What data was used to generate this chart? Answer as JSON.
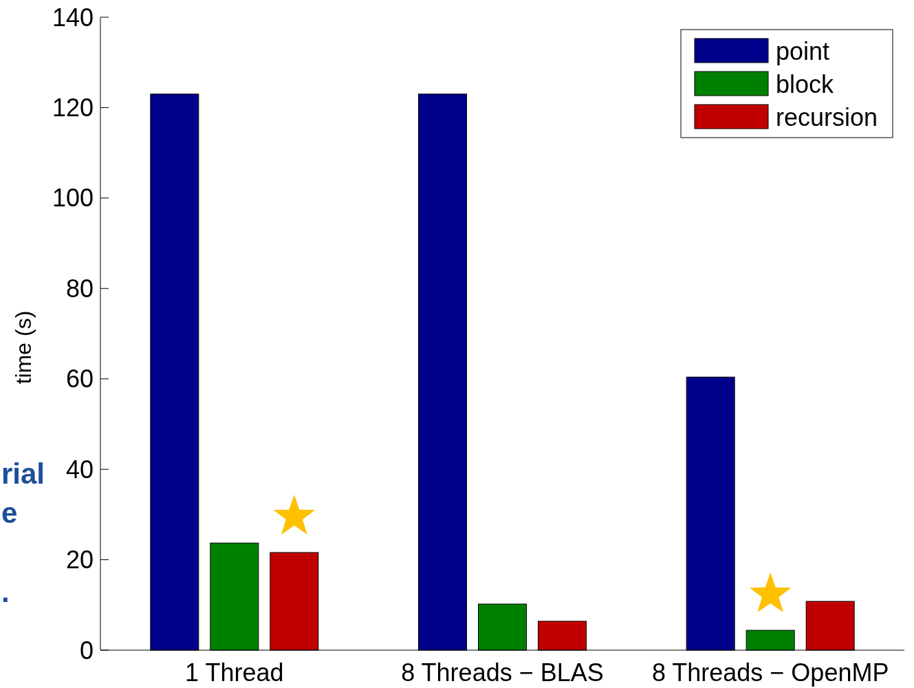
{
  "chart_data": {
    "type": "bar",
    "ylabel": "time (s)",
    "categories": [
      "1 Thread",
      "8 Threads − BLAS",
      "8 Threads − OpenMP"
    ],
    "series": [
      {
        "name": "point",
        "color": "#00008b",
        "values": [
          123,
          123,
          60.4
        ]
      },
      {
        "name": "block",
        "color": "#008000",
        "values": [
          23.7,
          10.2,
          4.4
        ]
      },
      {
        "name": "recursion",
        "color": "#c00000",
        "values": [
          21.6,
          6.4,
          10.8
        ]
      }
    ],
    "ylim": [
      0,
      140
    ],
    "yticks": [
      0,
      20,
      40,
      60,
      80,
      100,
      120,
      140
    ],
    "grid": false,
    "legend": "top right",
    "annotations": [
      "rial",
      "e",
      "."
    ]
  }
}
